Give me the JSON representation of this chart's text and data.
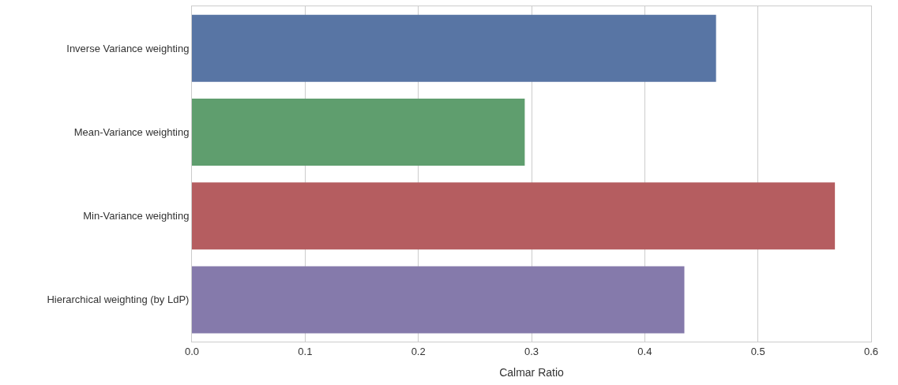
{
  "chart_data": {
    "type": "bar",
    "orientation": "horizontal",
    "xlabel": "Calmar Ratio",
    "categories": [
      "Inverse Variance weighting",
      "Mean-Variance weighting",
      "Min-Variance weighting",
      "Hierarchical weighting (by LdP)"
    ],
    "values": [
      0.463,
      0.294,
      0.568,
      0.435
    ],
    "colors": [
      "#5875a4",
      "#5f9e6e",
      "#b55d60",
      "#857aab"
    ],
    "xlim": [
      0,
      0.6
    ],
    "xticks": [
      {
        "value": 0,
        "label": "0.0"
      },
      0.1,
      0.2,
      0.3,
      0.4,
      0.5,
      0.6
    ],
    "grid": "x"
  }
}
